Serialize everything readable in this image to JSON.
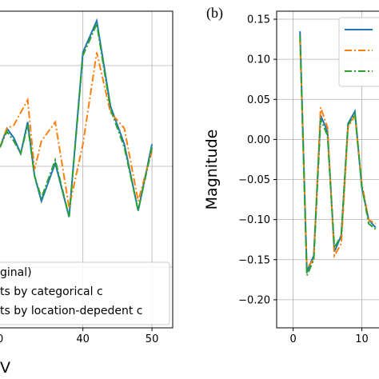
{
  "chart_data": [
    {
      "type": "line",
      "panel_label": "",
      "xlabel": "V",
      "ylabel": "",
      "xticks": [
        "40",
        "50"
      ],
      "xlim": [
        28,
        53
      ],
      "ylim": [
        0,
        1
      ],
      "grid": true,
      "legend_placement": "lower-right",
      "legend_entries": [
        "ginal)",
        "ts by categorical c",
        "ts by location-depedent c"
      ],
      "series": [
        {
          "color": "#1f77b4",
          "style": "solid",
          "x": [
            28,
            29,
            30,
            31,
            32,
            33,
            34,
            36,
            38,
            40,
            42,
            44,
            46,
            48,
            50
          ],
          "y": [
            0.57,
            0.63,
            0.6,
            0.55,
            0.65,
            0.48,
            0.4,
            0.52,
            0.35,
            0.87,
            0.97,
            0.7,
            0.58,
            0.37,
            0.58
          ]
        },
        {
          "color": "#ff7f0e",
          "style": "dashdot",
          "x": [
            28,
            29,
            30,
            31,
            32,
            33,
            34,
            36,
            38,
            40,
            42,
            44,
            46,
            48,
            50
          ],
          "y": [
            0.57,
            0.63,
            0.64,
            0.68,
            0.72,
            0.5,
            0.59,
            0.65,
            0.38,
            0.58,
            0.87,
            0.68,
            0.63,
            0.4,
            0.56
          ]
        },
        {
          "color": "#2ca02c",
          "style": "dashdot",
          "x": [
            28,
            29,
            30,
            31,
            32,
            33,
            34,
            36,
            38,
            40,
            42,
            44,
            46,
            48,
            50
          ],
          "y": [
            0.57,
            0.62,
            0.59,
            0.55,
            0.64,
            0.48,
            0.41,
            0.53,
            0.35,
            0.86,
            0.96,
            0.69,
            0.57,
            0.37,
            0.57
          ]
        }
      ]
    },
    {
      "type": "line",
      "panel_label": "(b)",
      "xlabel": "",
      "ylabel": "Magnitude",
      "xticks": [
        "0",
        "10"
      ],
      "yticks": [
        "0.15",
        "0.10",
        "0.05",
        "0.00",
        "−0.05",
        "−0.10",
        "−0.15",
        "−0.20"
      ],
      "xlim": [
        -2.4,
        12.5
      ],
      "ylim": [
        -0.235,
        0.16
      ],
      "grid": true,
      "legend_placement": "top-right",
      "series": [
        {
          "color": "#1f77b4",
          "style": "solid",
          "x": [
            1,
            2,
            3,
            4,
            5,
            6,
            7,
            8,
            9,
            10,
            11,
            12
          ],
          "y": [
            0.135,
            -0.165,
            -0.145,
            0.03,
            0.01,
            -0.14,
            -0.12,
            0.02,
            0.035,
            -0.06,
            -0.1,
            -0.11
          ]
        },
        {
          "color": "#ff7f0e",
          "style": "dashdot",
          "x": [
            1,
            2,
            3,
            4,
            5,
            6,
            7,
            8,
            9,
            10,
            11,
            12
          ],
          "y": [
            0.125,
            -0.16,
            -0.15,
            0.04,
            0.015,
            -0.145,
            -0.13,
            0.015,
            0.03,
            -0.055,
            -0.1,
            -0.105
          ]
        },
        {
          "color": "#2ca02c",
          "style": "dashdot",
          "x": [
            1,
            2,
            3,
            4,
            5,
            6,
            7,
            8,
            9,
            10,
            11,
            12
          ],
          "y": [
            0.13,
            -0.17,
            -0.15,
            0.025,
            0.005,
            -0.135,
            -0.12,
            0.018,
            0.032,
            -0.058,
            -0.105,
            -0.112
          ]
        }
      ]
    }
  ]
}
